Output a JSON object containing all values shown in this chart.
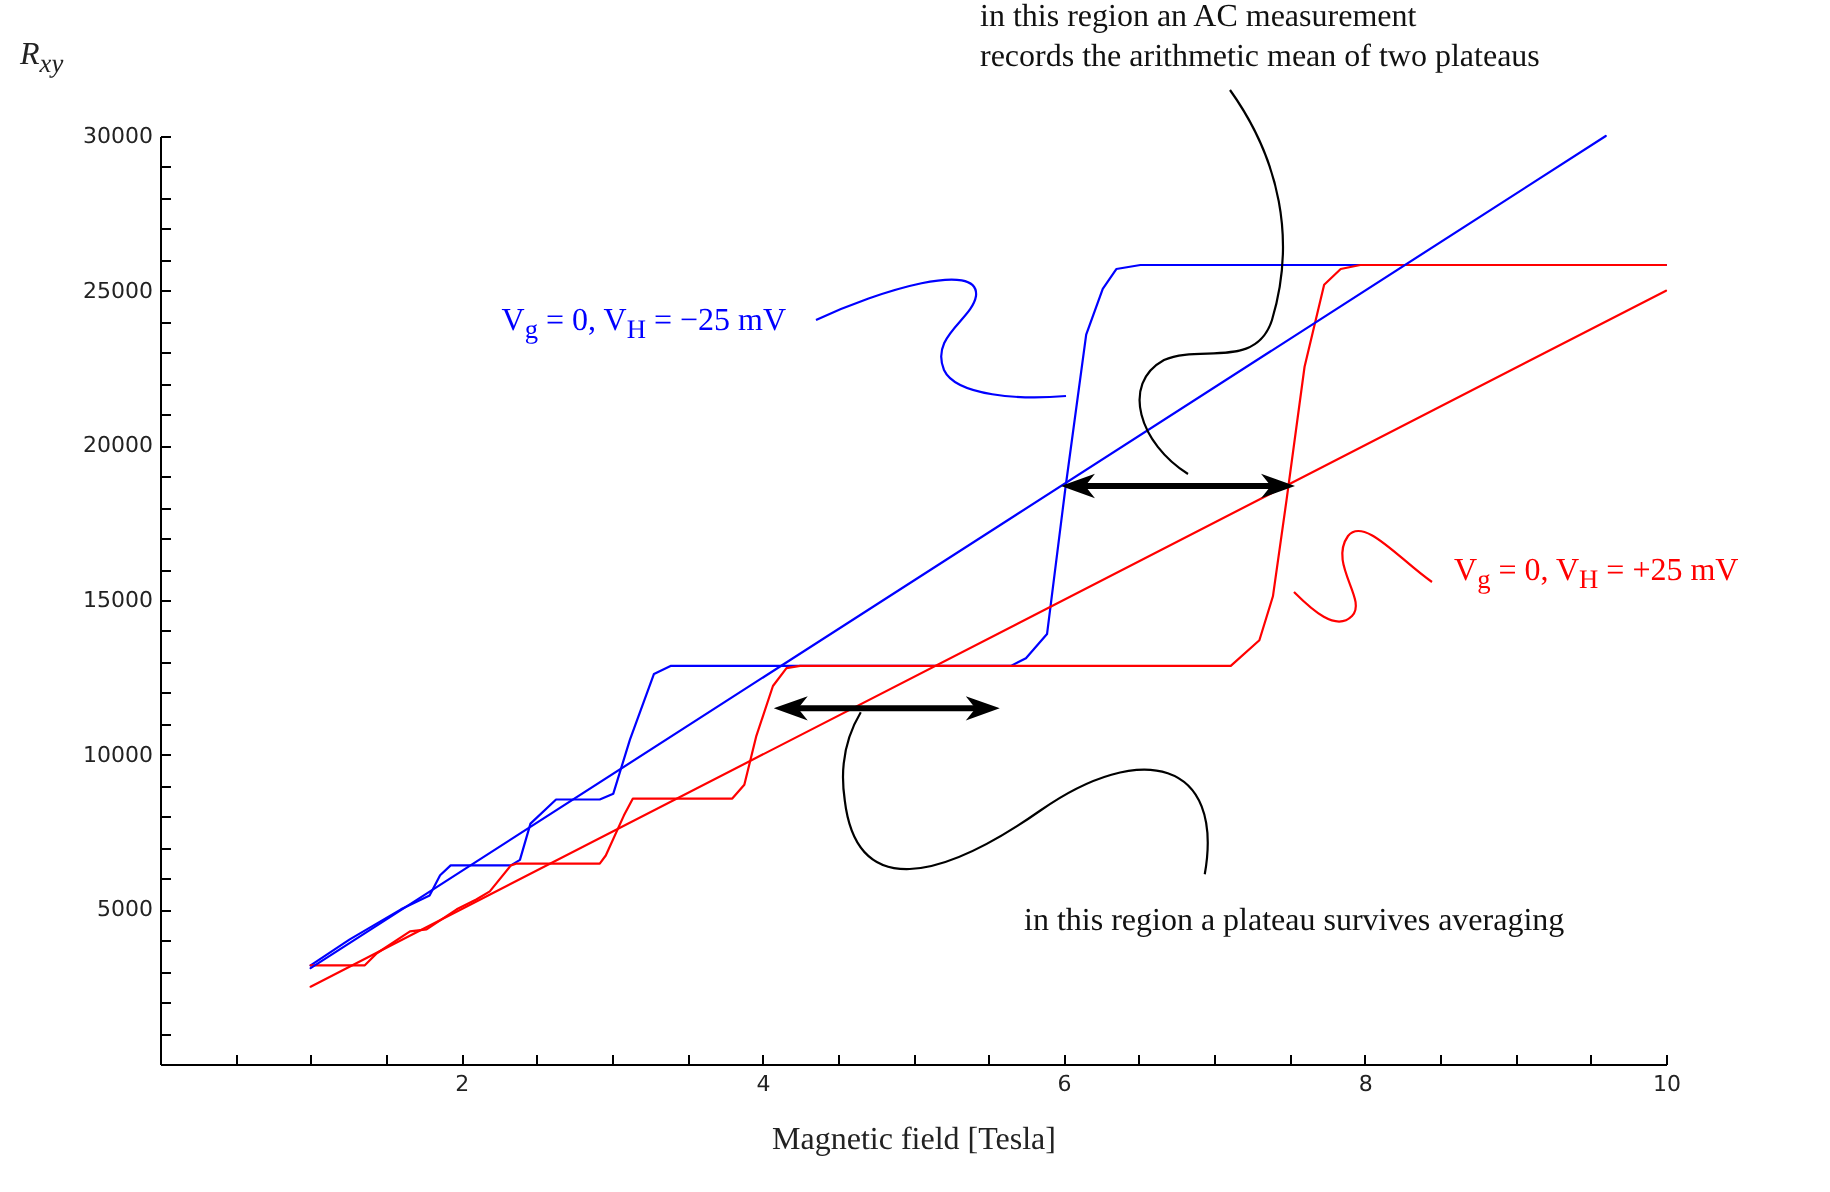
{
  "chart_data": {
    "type": "line",
    "xlabel": "Magnetic field [Tesla]",
    "ylabel": "R$_{xy}$",
    "xlim": [
      0,
      10
    ],
    "ylim": [
      0,
      30000
    ],
    "xticks": [
      {
        "value": 0.5,
        "label": null
      },
      {
        "value": 1,
        "label": null
      },
      {
        "value": 1.5,
        "label": null
      },
      2,
      {
        "value": 2.5,
        "label": null
      },
      {
        "value": 3,
        "label": null
      },
      {
        "value": 3.5,
        "label": null
      },
      4,
      {
        "value": 4.5,
        "label": null
      },
      {
        "value": 5,
        "label": null
      },
      {
        "value": 5.5,
        "label": null
      },
      6,
      {
        "value": 6.5,
        "label": null
      },
      {
        "value": 7,
        "label": null
      },
      {
        "value": 7.5,
        "label": null
      },
      8,
      {
        "value": 8.5,
        "label": null
      },
      {
        "value": 9,
        "label": null
      },
      {
        "value": 9.5,
        "label": null
      },
      10
    ],
    "yticks": [
      {
        "value": 1000,
        "label": null
      },
      {
        "value": 2000,
        "label": null
      },
      {
        "value": 3000,
        "label": null
      },
      {
        "value": 4000,
        "label": null
      },
      5000,
      {
        "value": 6000,
        "label": null
      },
      {
        "value": 7000,
        "label": null
      },
      {
        "value": 8000,
        "label": null
      },
      {
        "value": 9000,
        "label": null
      },
      10000,
      {
        "value": 11000,
        "label": null
      },
      {
        "value": 12000,
        "label": null
      },
      {
        "value": 13000,
        "label": null
      },
      {
        "value": 14000,
        "label": null
      },
      15000,
      {
        "value": 16000,
        "label": null
      },
      {
        "value": 17000,
        "label": null
      },
      {
        "value": 18000,
        "label": null
      },
      {
        "value": 19000,
        "label": null
      },
      20000,
      {
        "value": 21000,
        "label": null
      },
      {
        "value": 22000,
        "label": null
      },
      {
        "value": 23000,
        "label": null
      },
      {
        "value": 24000,
        "label": null
      },
      25000,
      {
        "value": 26000,
        "label": null
      },
      {
        "value": 27000,
        "label": null
      },
      {
        "value": 28000,
        "label": null
      },
      {
        "value": 29000,
        "label": null
      },
      30000
    ],
    "series": [
      {
        "name": "V$_{g}$ = 0, V$_{H}$ = −25 mV",
        "color": "#0000ff",
        "x": [
          1.0,
          1.26,
          1.6,
          1.79,
          1.86,
          1.93,
          2.33,
          2.39,
          2.46,
          2.63,
          2.92,
          3.01,
          3.12,
          3.28,
          3.39,
          5.65,
          5.75,
          5.89,
          6.01,
          6.15,
          6.26,
          6.35,
          6.51,
          10.0
        ],
        "values": [
          3190,
          4030,
          5000,
          5450,
          6100,
          6420,
          6420,
          6600,
          7770,
          8550,
          8550,
          8740,
          10480,
          12610,
          12870,
          12870,
          13120,
          13900,
          18540,
          23580,
          25060,
          25700,
          25830,
          25830
        ]
      },
      {
        "name": "V$_{g}$ = 0, V$_{H}$ = +25 mV",
        "color": "#ff0000",
        "x": [
          1.0,
          1.36,
          1.44,
          1.66,
          1.77,
          1.97,
          2.1,
          2.19,
          2.33,
          2.37,
          2.92,
          2.96,
          3.08,
          3.14,
          3.8,
          3.88,
          3.96,
          4.07,
          4.16,
          4.25,
          7.11,
          7.3,
          7.39,
          7.48,
          7.6,
          7.73,
          7.84,
          7.97,
          10.0
        ],
        "values": [
          3190,
          3190,
          3580,
          4290,
          4350,
          5000,
          5320,
          5580,
          6420,
          6480,
          6480,
          6740,
          8030,
          8580,
          8580,
          9030,
          10610,
          12220,
          12800,
          12870,
          12870,
          13700,
          15120,
          18220,
          22540,
          25190,
          25700,
          25830,
          25830
        ]
      },
      {
        "color": "#0000ff",
        "x": [
          1,
          9.6
        ],
        "values": [
          3100,
          30000
        ]
      },
      {
        "color": "#ff0000",
        "x": [
          1,
          10
        ],
        "values": [
          2500,
          25000
        ]
      }
    ],
    "annotations": [
      "in this region an AC measurement\nrecords the arithmetic mean of two plateaus",
      {
        "text": "in this region a plateau survives averaging",
        "x": 4.6,
        "y": 11500
      }
    ]
  }
}
